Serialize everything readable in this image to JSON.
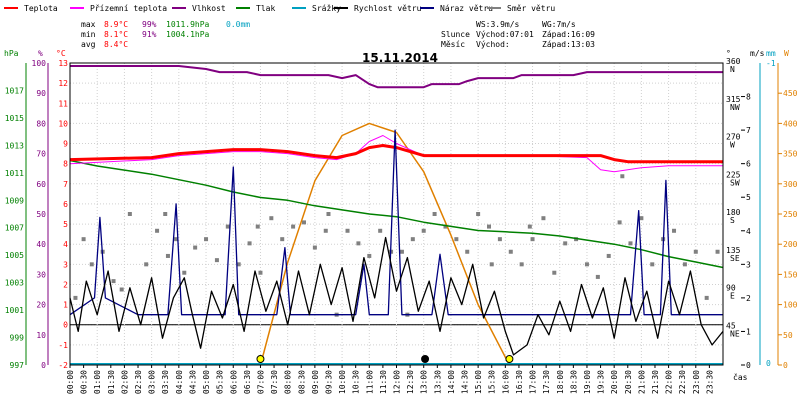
{
  "legend": [
    {
      "label": "Teplota",
      "color": "#ff0000"
    },
    {
      "label": "Přízemní teplota",
      "color": "#ff00ff"
    },
    {
      "label": "Vlhkost",
      "color": "#800080"
    },
    {
      "label": "Tlak",
      "color": "#008000"
    },
    {
      "label": "Srážky",
      "color": "#00a0c0"
    },
    {
      "label": "Rychlost větru",
      "color": "#000000"
    },
    {
      "label": "Náraz větru",
      "color": "#000080"
    },
    {
      "label": "Směr větru",
      "color": "#808080"
    }
  ],
  "stats": {
    "max_label": "max",
    "max_temp": "8.9°C",
    "max_hum": "99%",
    "max_press": "1011.9hPa",
    "max_rain": "0.0mm",
    "min_label": "min",
    "min_temp": "8.1°C",
    "min_hum": "91%",
    "min_press": "1004.1hPa",
    "avg_label": "avg",
    "avg_temp": "8.4°C"
  },
  "wind_info": {
    "ws": "WS:3.9m/s",
    "wg": "WG:7m/s"
  },
  "sun_info": {
    "sun_label": "Slunce",
    "rise_label": "Východ:07:01",
    "set_label": "Západ:16:09"
  },
  "moon_info": {
    "moon_label": "Měsíc",
    "rise_label": "Východ:",
    "set_label": "Západ:13:03"
  },
  "chart_data": {
    "type": "line",
    "title": "15.11.2014",
    "xlabel": "čas",
    "x_ticks": [
      "00:00",
      "00:30",
      "01:00",
      "01:30",
      "02:00",
      "02:30",
      "03:00",
      "03:30",
      "04:00",
      "04:30",
      "05:00",
      "05:30",
      "06:00",
      "06:30",
      "07:00",
      "07:30",
      "08:00",
      "08:30",
      "09:00",
      "09:30",
      "10:00",
      "10:30",
      "11:00",
      "11:30",
      "12:00",
      "12:30",
      "13:00",
      "13:30",
      "14:00",
      "14:30",
      "15:00",
      "15:30",
      "16:00",
      "16:30",
      "17:00",
      "17:30",
      "18:00",
      "18:30",
      "19:00",
      "19:30",
      "20:00",
      "20:30",
      "21:00",
      "21:30",
      "22:00",
      "22:30",
      "23:00",
      "23:30"
    ],
    "axes": {
      "hpa": {
        "label": "hPa",
        "range": [
          997,
          1019
        ],
        "ticks": [
          997,
          999,
          1001,
          1003,
          1005,
          1007,
          1009,
          1011,
          1013,
          1015,
          1017
        ]
      },
      "pct": {
        "label": "%",
        "range": [
          0,
          100
        ],
        "ticks": [
          0,
          10,
          20,
          30,
          40,
          50,
          60,
          70,
          80,
          90,
          100
        ]
      },
      "temp": {
        "label": "°C",
        "range": [
          -2,
          13
        ],
        "ticks": [
          -2,
          -1,
          0,
          1,
          2,
          3,
          4,
          5,
          6,
          7,
          8,
          9,
          10,
          11,
          12,
          13
        ]
      },
      "dir": {
        "label": "°",
        "range": [
          0,
          360
        ],
        "ticks": [
          45,
          90,
          135,
          180,
          225,
          270,
          315,
          360
        ],
        "names": [
          "NE",
          "E",
          "SE",
          "S",
          "SW",
          "W",
          "NW",
          "N"
        ]
      },
      "ms": {
        "label": "m/s",
        "range": [
          0,
          9
        ],
        "ticks": [
          0,
          1,
          2,
          3,
          4,
          5,
          6,
          7,
          8
        ]
      },
      "mm": {
        "label": "mm",
        "tick_labels": [
          "0",
          "-1"
        ]
      },
      "w": {
        "label": "W",
        "range": [
          0,
          500
        ],
        "ticks": [
          0,
          50,
          100,
          150,
          200,
          250,
          300,
          350,
          400,
          450
        ]
      }
    },
    "series": [
      {
        "name": "Vlhkost",
        "axis": "pct",
        "color": "#800080",
        "points": [
          [
            0,
            99
          ],
          [
            4,
            99
          ],
          [
            5,
            98
          ],
          [
            5.5,
            97
          ],
          [
            6.5,
            97
          ],
          [
            7,
            96
          ],
          [
            9.5,
            96
          ],
          [
            10,
            95
          ],
          [
            10.5,
            96
          ],
          [
            11,
            93
          ],
          [
            11.3,
            92
          ],
          [
            13,
            92
          ],
          [
            13.3,
            93
          ],
          [
            14.3,
            93
          ],
          [
            14.6,
            94
          ],
          [
            15,
            95
          ],
          [
            16.3,
            95
          ],
          [
            16.6,
            96
          ],
          [
            18.5,
            96
          ],
          [
            19,
            97
          ],
          [
            24,
            97
          ]
        ]
      },
      {
        "name": "Teplota",
        "axis": "temp",
        "color": "#ff0000",
        "points": [
          [
            0,
            8.2
          ],
          [
            3,
            8.3
          ],
          [
            4,
            8.5
          ],
          [
            5,
            8.6
          ],
          [
            6,
            8.7
          ],
          [
            7,
            8.7
          ],
          [
            8,
            8.6
          ],
          [
            9,
            8.4
          ],
          [
            9.8,
            8.3
          ],
          [
            10.5,
            8.5
          ],
          [
            11,
            8.8
          ],
          [
            11.5,
            8.9
          ],
          [
            12,
            8.8
          ],
          [
            12.5,
            8.6
          ],
          [
            13,
            8.4
          ],
          [
            15,
            8.4
          ],
          [
            17,
            8.4
          ],
          [
            19.5,
            8.4
          ],
          [
            20,
            8.2
          ],
          [
            20.5,
            8.1
          ],
          [
            24,
            8.1
          ]
        ]
      },
      {
        "name": "Přízemní teplota",
        "axis": "temp",
        "color": "#ff00ff",
        "points": [
          [
            0,
            8.0
          ],
          [
            3,
            8.2
          ],
          [
            4,
            8.4
          ],
          [
            5,
            8.5
          ],
          [
            6,
            8.6
          ],
          [
            7,
            8.6
          ],
          [
            8,
            8.5
          ],
          [
            9,
            8.3
          ],
          [
            9.8,
            8.2
          ],
          [
            10.5,
            8.5
          ],
          [
            11,
            9.1
          ],
          [
            11.5,
            9.4
          ],
          [
            12,
            9.0
          ],
          [
            12.5,
            8.7
          ],
          [
            13,
            8.4
          ],
          [
            15,
            8.4
          ],
          [
            17,
            8.4
          ],
          [
            19,
            8.3
          ],
          [
            19.5,
            7.7
          ],
          [
            20,
            7.6
          ],
          [
            20.5,
            7.7
          ],
          [
            21,
            7.8
          ],
          [
            22,
            7.9
          ],
          [
            24,
            7.9
          ]
        ]
      },
      {
        "name": "Tlak",
        "axis": "hpa",
        "color": "#008000",
        "points": [
          [
            0,
            1011.9
          ],
          [
            1,
            1011.5
          ],
          [
            2,
            1011.2
          ],
          [
            3,
            1010.9
          ],
          [
            4,
            1010.5
          ],
          [
            5,
            1010.1
          ],
          [
            6,
            1009.6
          ],
          [
            7,
            1009.2
          ],
          [
            8,
            1009.0
          ],
          [
            9,
            1008.6
          ],
          [
            10,
            1008.3
          ],
          [
            11,
            1008.0
          ],
          [
            12,
            1007.8
          ],
          [
            13,
            1007.4
          ],
          [
            14,
            1007.1
          ],
          [
            15,
            1006.8
          ],
          [
            16,
            1006.7
          ],
          [
            17,
            1006.6
          ],
          [
            18,
            1006.4
          ],
          [
            19,
            1006.1
          ],
          [
            20,
            1005.8
          ],
          [
            21,
            1005.4
          ],
          [
            22,
            1004.9
          ],
          [
            23,
            1004.5
          ],
          [
            24,
            1004.1
          ]
        ]
      },
      {
        "name": "Rychlost větru",
        "axis": "ms",
        "color": "#000000",
        "points": [
          [
            0,
            2.0
          ],
          [
            0.3,
            1.0
          ],
          [
            0.6,
            2.5
          ],
          [
            1,
            1.5
          ],
          [
            1.4,
            2.8
          ],
          [
            1.8,
            1.0
          ],
          [
            2.2,
            2.3
          ],
          [
            2.6,
            1.2
          ],
          [
            3,
            2.6
          ],
          [
            3.4,
            0.8
          ],
          [
            3.8,
            2.0
          ],
          [
            4.2,
            2.6
          ],
          [
            4.5,
            1.5
          ],
          [
            4.8,
            0.5
          ],
          [
            5.2,
            2.2
          ],
          [
            5.6,
            1.4
          ],
          [
            6,
            2.4
          ],
          [
            6.4,
            1.0
          ],
          [
            6.8,
            2.8
          ],
          [
            7.2,
            1.6
          ],
          [
            7.6,
            2.5
          ],
          [
            8,
            1.2
          ],
          [
            8.4,
            2.8
          ],
          [
            8.8,
            1.5
          ],
          [
            9.2,
            3.0
          ],
          [
            9.6,
            1.8
          ],
          [
            10,
            2.9
          ],
          [
            10.4,
            1.3
          ],
          [
            10.8,
            3.2
          ],
          [
            11.2,
            2.0
          ],
          [
            11.6,
            3.8
          ],
          [
            12,
            2.2
          ],
          [
            12.4,
            3.2
          ],
          [
            12.8,
            1.6
          ],
          [
            13.2,
            2.5
          ],
          [
            13.6,
            1.0
          ],
          [
            14,
            2.6
          ],
          [
            14.4,
            1.8
          ],
          [
            14.8,
            3.0
          ],
          [
            15.2,
            1.4
          ],
          [
            15.6,
            2.2
          ],
          [
            16,
            1.0
          ],
          [
            16.3,
            0.3
          ],
          [
            16.8,
            0.6
          ],
          [
            17.2,
            1.5
          ],
          [
            17.6,
            0.9
          ],
          [
            18,
            1.9
          ],
          [
            18.4,
            1.0
          ],
          [
            18.8,
            2.4
          ],
          [
            19.2,
            1.4
          ],
          [
            19.6,
            2.3
          ],
          [
            20,
            0.8
          ],
          [
            20.4,
            2.6
          ],
          [
            20.8,
            1.3
          ],
          [
            21.2,
            2.2
          ],
          [
            21.6,
            0.8
          ],
          [
            22,
            2.5
          ],
          [
            22.4,
            1.5
          ],
          [
            22.8,
            2.8
          ],
          [
            23.2,
            1.2
          ],
          [
            23.6,
            0.6
          ],
          [
            24,
            1.0
          ]
        ]
      },
      {
        "name": "Náraz větru",
        "axis": "ms",
        "color": "#000080",
        "points": [
          [
            0,
            1.5
          ],
          [
            0.9,
            2.0
          ],
          [
            1.1,
            4.4
          ],
          [
            1.3,
            2.0
          ],
          [
            2.5,
            1.5
          ],
          [
            3.6,
            1.5
          ],
          [
            3.9,
            4.8
          ],
          [
            4.1,
            1.5
          ],
          [
            5.7,
            1.5
          ],
          [
            6.0,
            5.9
          ],
          [
            6.2,
            1.5
          ],
          [
            7.6,
            1.5
          ],
          [
            7.9,
            3.5
          ],
          [
            8.1,
            1.5
          ],
          [
            10.5,
            1.5
          ],
          [
            10.8,
            3.0
          ],
          [
            11,
            1.5
          ],
          [
            11.7,
            1.5
          ],
          [
            11.95,
            7.0
          ],
          [
            12.2,
            1.5
          ],
          [
            13.3,
            1.5
          ],
          [
            13.6,
            3.3
          ],
          [
            13.9,
            1.5
          ],
          [
            20.6,
            1.5
          ],
          [
            20.9,
            4.6
          ],
          [
            21.1,
            1.5
          ],
          [
            21.7,
            1.5
          ],
          [
            21.9,
            5.5
          ],
          [
            22.1,
            1.5
          ],
          [
            24,
            1.5
          ]
        ]
      },
      {
        "name": "Slunce",
        "axis": "w",
        "color": "#e08000",
        "points": [
          [
            7.0,
            0
          ],
          [
            8,
            170
          ],
          [
            9,
            305
          ],
          [
            10,
            380
          ],
          [
            11,
            400
          ],
          [
            12,
            385
          ],
          [
            13,
            320
          ],
          [
            14,
            215
          ],
          [
            15,
            100
          ],
          [
            16.15,
            0
          ]
        ]
      }
    ],
    "wind_direction_points": [
      [
        0.2,
        80
      ],
      [
        0.5,
        150
      ],
      [
        0.8,
        120
      ],
      [
        1.2,
        135
      ],
      [
        1.6,
        100
      ],
      [
        2.2,
        180
      ],
      [
        2.8,
        120
      ],
      [
        3.2,
        160
      ],
      [
        3.6,
        130
      ],
      [
        3.9,
        150
      ],
      [
        4.2,
        110
      ],
      [
        4.6,
        140
      ],
      [
        5.0,
        150
      ],
      [
        5.4,
        125
      ],
      [
        5.8,
        165
      ],
      [
        6.2,
        120
      ],
      [
        6.6,
        145
      ],
      [
        7.0,
        110
      ],
      [
        7.4,
        175
      ],
      [
        7.8,
        150
      ],
      [
        8.2,
        165
      ],
      [
        8.6,
        170
      ],
      [
        9.0,
        140
      ],
      [
        9.4,
        160
      ],
      [
        9.8,
        60
      ],
      [
        10.2,
        160
      ],
      [
        10.6,
        145
      ],
      [
        11.0,
        130
      ],
      [
        11.4,
        160
      ],
      [
        11.8,
        135
      ],
      [
        12.2,
        135
      ],
      [
        12.6,
        150
      ],
      [
        13.0,
        160
      ],
      [
        13.4,
        180
      ],
      [
        13.8,
        165
      ],
      [
        14.2,
        150
      ],
      [
        14.6,
        135
      ],
      [
        15.0,
        180
      ],
      [
        15.4,
        165
      ],
      [
        15.8,
        150
      ],
      [
        16.2,
        135
      ],
      [
        16.6,
        120
      ],
      [
        17.0,
        150
      ],
      [
        17.4,
        175
      ],
      [
        17.8,
        110
      ],
      [
        18.2,
        145
      ],
      [
        18.6,
        150
      ],
      [
        19.0,
        120
      ],
      [
        19.4,
        105
      ],
      [
        19.8,
        130
      ],
      [
        20.2,
        170
      ],
      [
        20.6,
        145
      ],
      [
        21.0,
        175
      ],
      [
        21.4,
        120
      ],
      [
        21.8,
        150
      ],
      [
        22.2,
        160
      ],
      [
        22.6,
        120
      ],
      [
        23.0,
        135
      ],
      [
        23.4,
        80
      ],
      [
        23.8,
        135
      ],
      [
        3.5,
        180
      ],
      [
        9.5,
        180
      ],
      [
        16.9,
        165
      ],
      [
        6.9,
        165
      ],
      [
        20.3,
        225
      ],
      [
        12.4,
        60
      ],
      [
        1.9,
        90
      ],
      [
        15.5,
        120
      ]
    ],
    "markers": [
      {
        "name": "sunrise",
        "x": 7.0,
        "color": "#ffff00"
      },
      {
        "name": "moonset",
        "x": 13.05,
        "color": "#000000"
      },
      {
        "name": "sunset",
        "x": 16.15,
        "color": "#ffff00"
      }
    ]
  }
}
